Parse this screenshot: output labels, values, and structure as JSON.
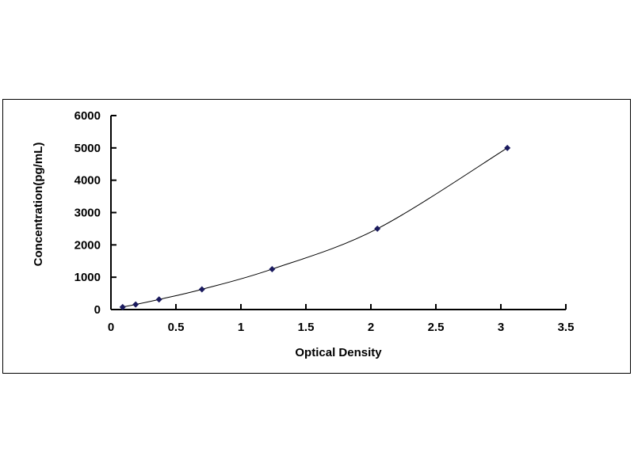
{
  "chart_data": {
    "type": "scatter",
    "title": "",
    "xlabel": "Optical Density",
    "ylabel": "Concentration(pg/mL)",
    "xlim": [
      0,
      3.5
    ],
    "ylim": [
      0,
      6000
    ],
    "xticks": [
      "0",
      "0.5",
      "1",
      "1.5",
      "2",
      "2.5",
      "3",
      "3.5"
    ],
    "yticks": [
      "0",
      "1000",
      "2000",
      "3000",
      "4000",
      "5000",
      "6000"
    ],
    "grid": false,
    "legend": "none",
    "series": [
      {
        "x": [
          0.09,
          0.19,
          0.37,
          0.7,
          1.24,
          2.05,
          3.05
        ],
        "y": [
          78,
          156,
          312,
          625,
          1250,
          2500,
          5000
        ],
        "marker": "diamond",
        "color": "#1a1a5e",
        "trendline": "smooth curve"
      }
    ]
  }
}
